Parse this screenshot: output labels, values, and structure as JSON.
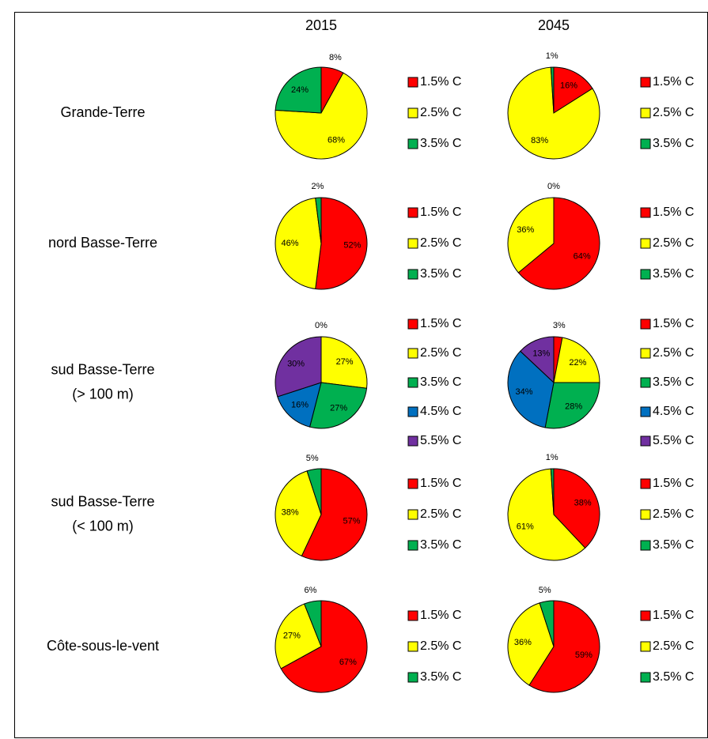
{
  "column_headers": [
    "2015",
    "2045"
  ],
  "row_labels": [
    [
      "Grande-Terre"
    ],
    [
      "nord Basse-Terre"
    ],
    [
      "sud Basse-Terre",
      "(> 100 m)"
    ],
    [
      "sud Basse-Terre",
      "(< 100 m)"
    ],
    [
      "Côte-sous-le-vent"
    ]
  ],
  "chart_data": [
    {
      "type": "pie",
      "categories": [
        "1.5% C",
        "2.5% C",
        "3.5% C"
      ],
      "values": [
        8,
        68,
        24
      ],
      "value_labels": [
        "8%",
        "68%",
        "24%"
      ],
      "colors": [
        "#ff0000",
        "#ffff00",
        "#00b050"
      ]
    },
    {
      "type": "pie",
      "categories": [
        "1.5% C",
        "2.5% C",
        "3.5% C"
      ],
      "values": [
        16,
        83,
        1
      ],
      "value_labels": [
        "16%",
        "83%",
        "1%"
      ],
      "colors": [
        "#ff0000",
        "#ffff00",
        "#00b050"
      ]
    },
    {
      "type": "pie",
      "categories": [
        "1.5% C",
        "2.5% C",
        "3.5% C"
      ],
      "values": [
        52,
        46,
        2
      ],
      "value_labels": [
        "52%",
        "46%",
        "2%"
      ],
      "colors": [
        "#ff0000",
        "#ffff00",
        "#00b050"
      ]
    },
    {
      "type": "pie",
      "categories": [
        "1.5% C",
        "2.5% C",
        "3.5% C"
      ],
      "values": [
        64,
        36,
        0
      ],
      "value_labels": [
        "64%",
        "36%",
        "0%"
      ],
      "colors": [
        "#ff0000",
        "#ffff00",
        "#00b050"
      ]
    },
    {
      "type": "pie",
      "categories": [
        "1.5% C",
        "2.5% C",
        "3.5% C",
        "4.5% C",
        "5.5% C"
      ],
      "values": [
        0,
        27,
        27,
        16,
        30
      ],
      "value_labels": [
        "0%",
        "27%",
        "27%",
        "16%",
        "30%"
      ],
      "colors": [
        "#ff0000",
        "#ffff00",
        "#00b050",
        "#0070c0",
        "#7030a0"
      ]
    },
    {
      "type": "pie",
      "categories": [
        "1.5% C",
        "2.5% C",
        "3.5% C",
        "4.5% C",
        "5.5% C"
      ],
      "values": [
        3,
        22,
        28,
        34,
        13
      ],
      "value_labels": [
        "3%",
        "22%",
        "28%",
        "34%",
        "13%"
      ],
      "colors": [
        "#ff0000",
        "#ffff00",
        "#00b050",
        "#0070c0",
        "#7030a0"
      ]
    },
    {
      "type": "pie",
      "categories": [
        "1.5% C",
        "2.5% C",
        "3.5% C"
      ],
      "values": [
        57,
        38,
        5
      ],
      "value_labels": [
        "57%",
        "38%",
        "5%"
      ],
      "colors": [
        "#ff0000",
        "#ffff00",
        "#00b050"
      ]
    },
    {
      "type": "pie",
      "categories": [
        "1.5% C",
        "2.5% C",
        "3.5% C"
      ],
      "values": [
        38,
        61,
        1
      ],
      "value_labels": [
        "38%",
        "61%",
        "1%"
      ],
      "colors": [
        "#ff0000",
        "#ffff00",
        "#00b050"
      ]
    },
    {
      "type": "pie",
      "categories": [
        "1.5% C",
        "2.5% C",
        "3.5% C"
      ],
      "values": [
        67,
        27,
        6
      ],
      "value_labels": [
        "67%",
        "27%",
        "6%"
      ],
      "colors": [
        "#ff0000",
        "#ffff00",
        "#00b050"
      ]
    },
    {
      "type": "pie",
      "categories": [
        "1.5% C",
        "2.5% C",
        "3.5% C"
      ],
      "values": [
        59,
        36,
        5
      ],
      "value_labels": [
        "59%",
        "36%",
        "5%"
      ],
      "colors": [
        "#ff0000",
        "#ffff00",
        "#00b050"
      ]
    }
  ]
}
